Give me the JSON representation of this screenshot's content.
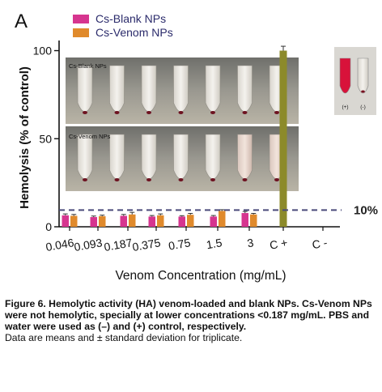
{
  "panel_label": "A",
  "chart_data": {
    "type": "bar",
    "ylabel": "Hemolysis (% of control)",
    "xlabel": "Venom Concentration  (mg/mL)",
    "categories": [
      "0.046",
      "0.093",
      "0.187",
      "0.375",
      "0.75",
      "1.5",
      "3",
      "C +",
      "C -"
    ],
    "ylim": [
      0,
      103
    ],
    "yticks": [
      0,
      50,
      100
    ],
    "series": [
      {
        "name": "Cs-Blank NPs",
        "color": "#d6358f",
        "values": [
          6.5,
          5.5,
          6.2,
          5.8,
          5.8,
          5.8,
          7.8,
          null,
          null
        ],
        "errors": [
          0.8,
          0.6,
          0.8,
          0.6,
          0.5,
          0.6,
          0.9,
          null,
          null
        ]
      },
      {
        "name": "Cs-Venom NPs",
        "color": "#e08a2c",
        "values": [
          6.2,
          6.0,
          7.0,
          6.5,
          6.8,
          9.0,
          7.0,
          null,
          null
        ],
        "errors": [
          0.8,
          0.6,
          1.2,
          0.8,
          0.8,
          0.7,
          0.6,
          null,
          null
        ]
      },
      {
        "name": "",
        "color": "#8c8a2a",
        "values": [
          null,
          null,
          null,
          null,
          null,
          null,
          null,
          100,
          0
        ],
        "errors": [
          null,
          null,
          null,
          null,
          null,
          null,
          null,
          2.5,
          null
        ]
      }
    ],
    "threshold": {
      "value": 9.5,
      "label": "10%",
      "color": "#4a4a7a"
    },
    "legend_position": "top-left",
    "grid": false
  },
  "inset_photos": {
    "top_label": "Cs-Blank NPs",
    "bottom_label": "Cs-Venom NPs",
    "control_labels": [
      "(+)",
      "(-)"
    ]
  },
  "caption": {
    "bold": "Figure 6. Hemolytic activity (HA) venom-loaded and blank NPs. Cs-Venom NPs were not hemolytic, specially at lower concentrations <0.187 mg/mL. PBS and water were used as (–) and (+) control, respectively.",
    "normal": "Data are means and ± standard deviation for triplicate."
  }
}
